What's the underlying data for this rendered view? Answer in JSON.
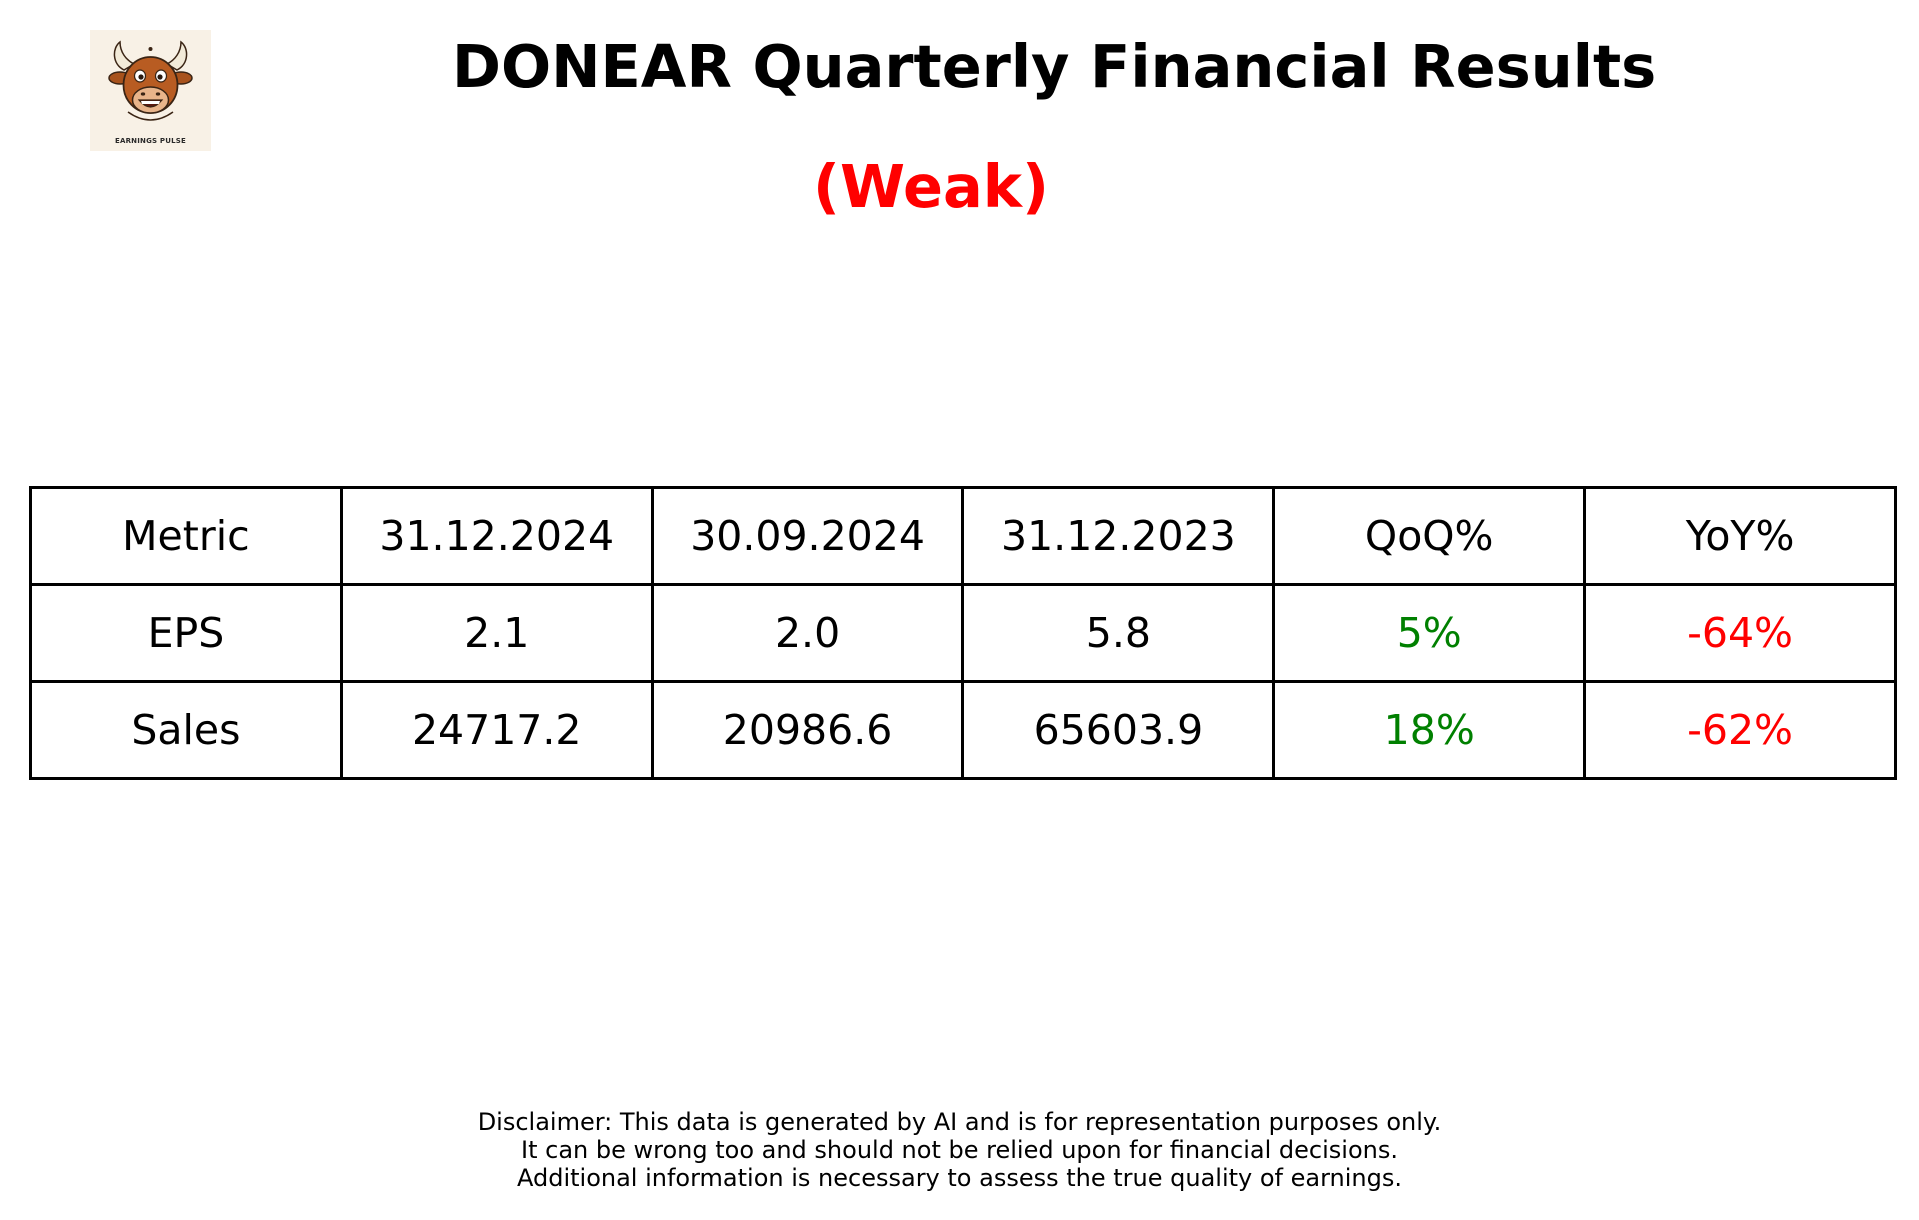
{
  "logo": {
    "icon": "bull-mascot-icon",
    "text": "EARNINGS PULSE"
  },
  "header": {
    "title": "DONEAR Quarterly Financial Results",
    "verdict": "(Weak)",
    "verdict_color": "#ff0000"
  },
  "chart_data": {
    "type": "table",
    "columns": [
      "Metric",
      "31.12.2024",
      "30.09.2024",
      "31.12.2023",
      "QoQ%",
      "YoY%"
    ],
    "rows": [
      {
        "metric": "EPS",
        "values": [
          "2.1",
          "2.0",
          "5.8"
        ],
        "qoq": "5%",
        "qoq_color": "#008000",
        "yoy": "-64%",
        "yoy_color": "#ff0000"
      },
      {
        "metric": "Sales",
        "values": [
          "24717.2",
          "20986.6",
          "65603.9"
        ],
        "qoq": "18%",
        "qoq_color": "#008000",
        "yoy": "-62%",
        "yoy_color": "#ff0000"
      }
    ]
  },
  "disclaimer": {
    "lines": [
      "Disclaimer: This data is generated by AI and is for representation purposes only.",
      "It can be wrong too and should not be relied upon for financial decisions.",
      "Additional information is necessary to assess the true quality of earnings."
    ]
  }
}
